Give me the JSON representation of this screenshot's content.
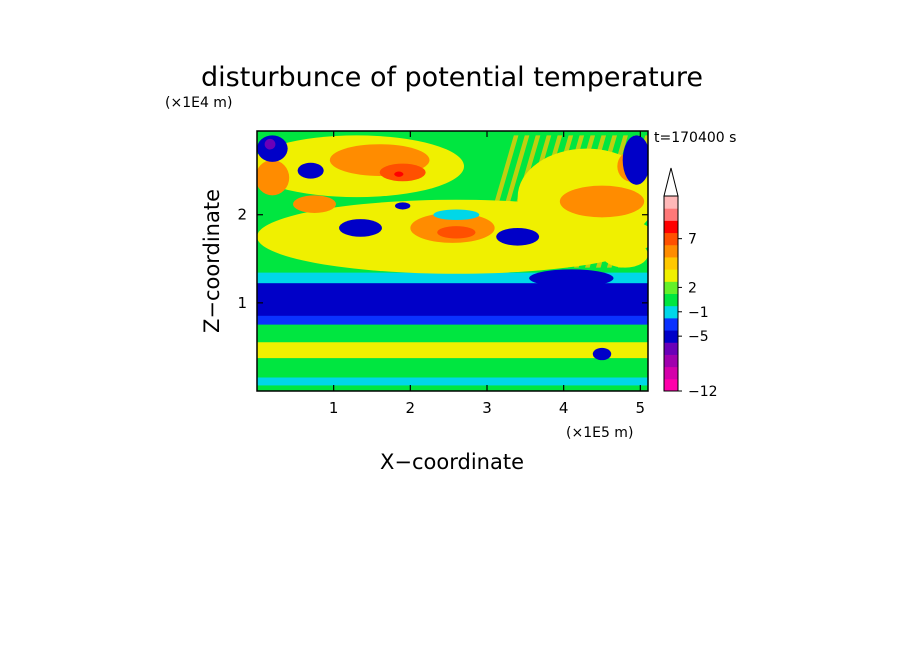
{
  "chart_data": {
    "type": "heatmap",
    "title": "disturbunce of potential temperature",
    "time_label": "t=170400 s",
    "xlabel": "X−coordinate",
    "ylabel": "Z−coordinate",
    "x_unit": "(×1E5 m)",
    "y_unit": "(×1E4 m)",
    "xlim": [
      0,
      5.1
    ],
    "ylim": [
      0,
      2.95
    ],
    "x_ticks": [
      1,
      2,
      3,
      4,
      5
    ],
    "y_ticks": [
      1,
      2
    ],
    "x_tick_labels": [
      "1",
      "2",
      "3",
      "4",
      "5"
    ],
    "y_tick_labels": [
      "1",
      "2"
    ],
    "colorbar": {
      "levels": [
        -12,
        -5,
        -1,
        2,
        7
      ],
      "level_labels": [
        "−12",
        "−5",
        "−1",
        "2",
        "7"
      ],
      "colors": [
        "#ff00aa",
        "#d400aa",
        "#a000ae",
        "#6a00b8",
        "#0000c8",
        "#0a32ff",
        "#00d7e8",
        "#00e640",
        "#64f028",
        "#f0f000",
        "#ffc800",
        "#ff8c00",
        "#ff5000",
        "#ff0000",
        "#ff7878",
        "#ffb8b8"
      ],
      "extend_top": true
    },
    "bands": [
      {
        "z": [
          0.0,
          0.07
        ],
        "value": 0,
        "desc": "green"
      },
      {
        "z": [
          0.07,
          0.16
        ],
        "value": -1,
        "desc": "cyan"
      },
      {
        "z": [
          0.16,
          0.38
        ],
        "value": 0,
        "desc": "green"
      },
      {
        "z": [
          0.38,
          0.56
        ],
        "value": 1,
        "desc": "yellow"
      },
      {
        "z": [
          0.56,
          0.76
        ],
        "value": 0,
        "desc": "green"
      },
      {
        "z": [
          0.76,
          0.86
        ],
        "value": -2,
        "desc": "blue"
      },
      {
        "z": [
          0.86,
          1.23
        ],
        "value": -4,
        "desc": "dark blue"
      },
      {
        "z": [
          1.23,
          1.35
        ],
        "value": -1,
        "desc": "cyan"
      },
      {
        "z": [
          1.35,
          2.95
        ],
        "value": 0,
        "desc": "green"
      }
    ],
    "blobs": [
      {
        "x": 2.6,
        "z": 1.75,
        "rx": 2.6,
        "rz": 0.42,
        "value": 1
      },
      {
        "x": 1.3,
        "z": 2.55,
        "rx": 1.4,
        "rz": 0.35,
        "value": 1
      },
      {
        "x": 4.3,
        "z": 2.2,
        "rx": 0.9,
        "rz": 0.55,
        "value": 1
      },
      {
        "x": 4.8,
        "z": 1.55,
        "rx": 0.3,
        "rz": 0.15,
        "value": 1
      },
      {
        "x": 1.6,
        "z": 2.62,
        "rx": 0.65,
        "rz": 0.18,
        "value": 3
      },
      {
        "x": 1.9,
        "z": 2.48,
        "rx": 0.3,
        "rz": 0.1,
        "value": 4
      },
      {
        "x": 1.85,
        "z": 2.46,
        "rx": 0.06,
        "rz": 0.03,
        "value": 6
      },
      {
        "x": 2.55,
        "z": 1.85,
        "rx": 0.55,
        "rz": 0.17,
        "value": 3
      },
      {
        "x": 2.6,
        "z": 1.8,
        "rx": 0.25,
        "rz": 0.07,
        "value": 4
      },
      {
        "x": 0.2,
        "z": 2.42,
        "rx": 0.22,
        "rz": 0.2,
        "value": 3
      },
      {
        "x": 0.75,
        "z": 2.12,
        "rx": 0.28,
        "rz": 0.1,
        "value": 3
      },
      {
        "x": 4.5,
        "z": 2.15,
        "rx": 0.55,
        "rz": 0.18,
        "value": 3
      },
      {
        "x": 4.9,
        "z": 2.55,
        "rx": 0.2,
        "rz": 0.18,
        "value": 3
      },
      {
        "x": 0.2,
        "z": 2.75,
        "rx": 0.2,
        "rz": 0.15,
        "value": -3
      },
      {
        "x": 0.17,
        "z": 2.8,
        "rx": 0.07,
        "rz": 0.06,
        "value": -7
      },
      {
        "x": 0.7,
        "z": 2.5,
        "rx": 0.17,
        "rz": 0.09,
        "value": -3
      },
      {
        "x": 1.35,
        "z": 1.85,
        "rx": 0.28,
        "rz": 0.1,
        "value": -3
      },
      {
        "x": 3.4,
        "z": 1.75,
        "rx": 0.28,
        "rz": 0.1,
        "value": -3
      },
      {
        "x": 4.95,
        "z": 2.62,
        "rx": 0.18,
        "rz": 0.28,
        "value": -3
      },
      {
        "x": 1.9,
        "z": 2.1,
        "rx": 0.1,
        "rz": 0.04,
        "value": -3
      },
      {
        "x": 4.1,
        "z": 1.28,
        "rx": 0.55,
        "rz": 0.1,
        "value": -3
      },
      {
        "x": 4.5,
        "z": 0.42,
        "rx": 0.12,
        "rz": 0.07,
        "value": -3
      },
      {
        "x": 2.6,
        "z": 2.0,
        "rx": 0.3,
        "rz": 0.06,
        "value": -1
      }
    ],
    "stripes": {
      "x_range": [
        3.1,
        5.1
      ],
      "z_range": [
        1.4,
        2.9
      ],
      "count": 14,
      "value": 2
    }
  }
}
